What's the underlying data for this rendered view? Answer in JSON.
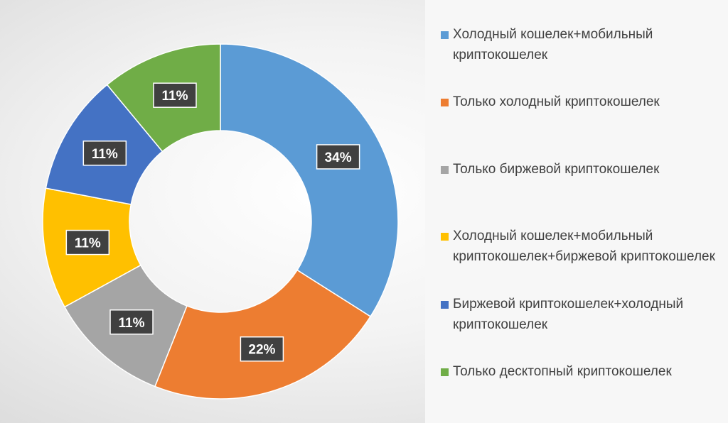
{
  "chart_data": {
    "type": "pie",
    "variant": "donut",
    "title": "",
    "legend_position": "right",
    "slices": [
      {
        "label": "Холодный кошелек+мобильный криптокошелек",
        "value": 34,
        "display": "34%",
        "color": "#5B9BD5"
      },
      {
        "label": "Только холодный криптокошелек",
        "value": 22,
        "display": "22%",
        "color": "#ED7D31"
      },
      {
        "label": "Только биржевой криптокошелек",
        "value": 11,
        "display": "11%",
        "color": "#A5A5A5"
      },
      {
        "label": "Холодный кошелек+мобильный криптокошелек+биржевой криптокошелек",
        "value": 11,
        "display": "11%",
        "color": "#FFC000"
      },
      {
        "label": "Биржевой криптокошелек+холодный криптокошелек",
        "value": 11,
        "display": "11%",
        "color": "#4472C4"
      },
      {
        "label": "Только десктопный криптокошелек",
        "value": 11,
        "display": "11%",
        "color": "#70AD47"
      }
    ]
  },
  "legend": {
    "items": [
      "Холодный кошелек+мобильный криптокошелек",
      "Только холодный криптокошелек",
      "Только биржевой криптокошелек",
      "Холодный кошелек+мобильный криптокошелек+биржевой криптокошелек",
      "Биржевой криптокошелек+холодный криптокошелек",
      "Только десктопный криптокошелек"
    ]
  }
}
